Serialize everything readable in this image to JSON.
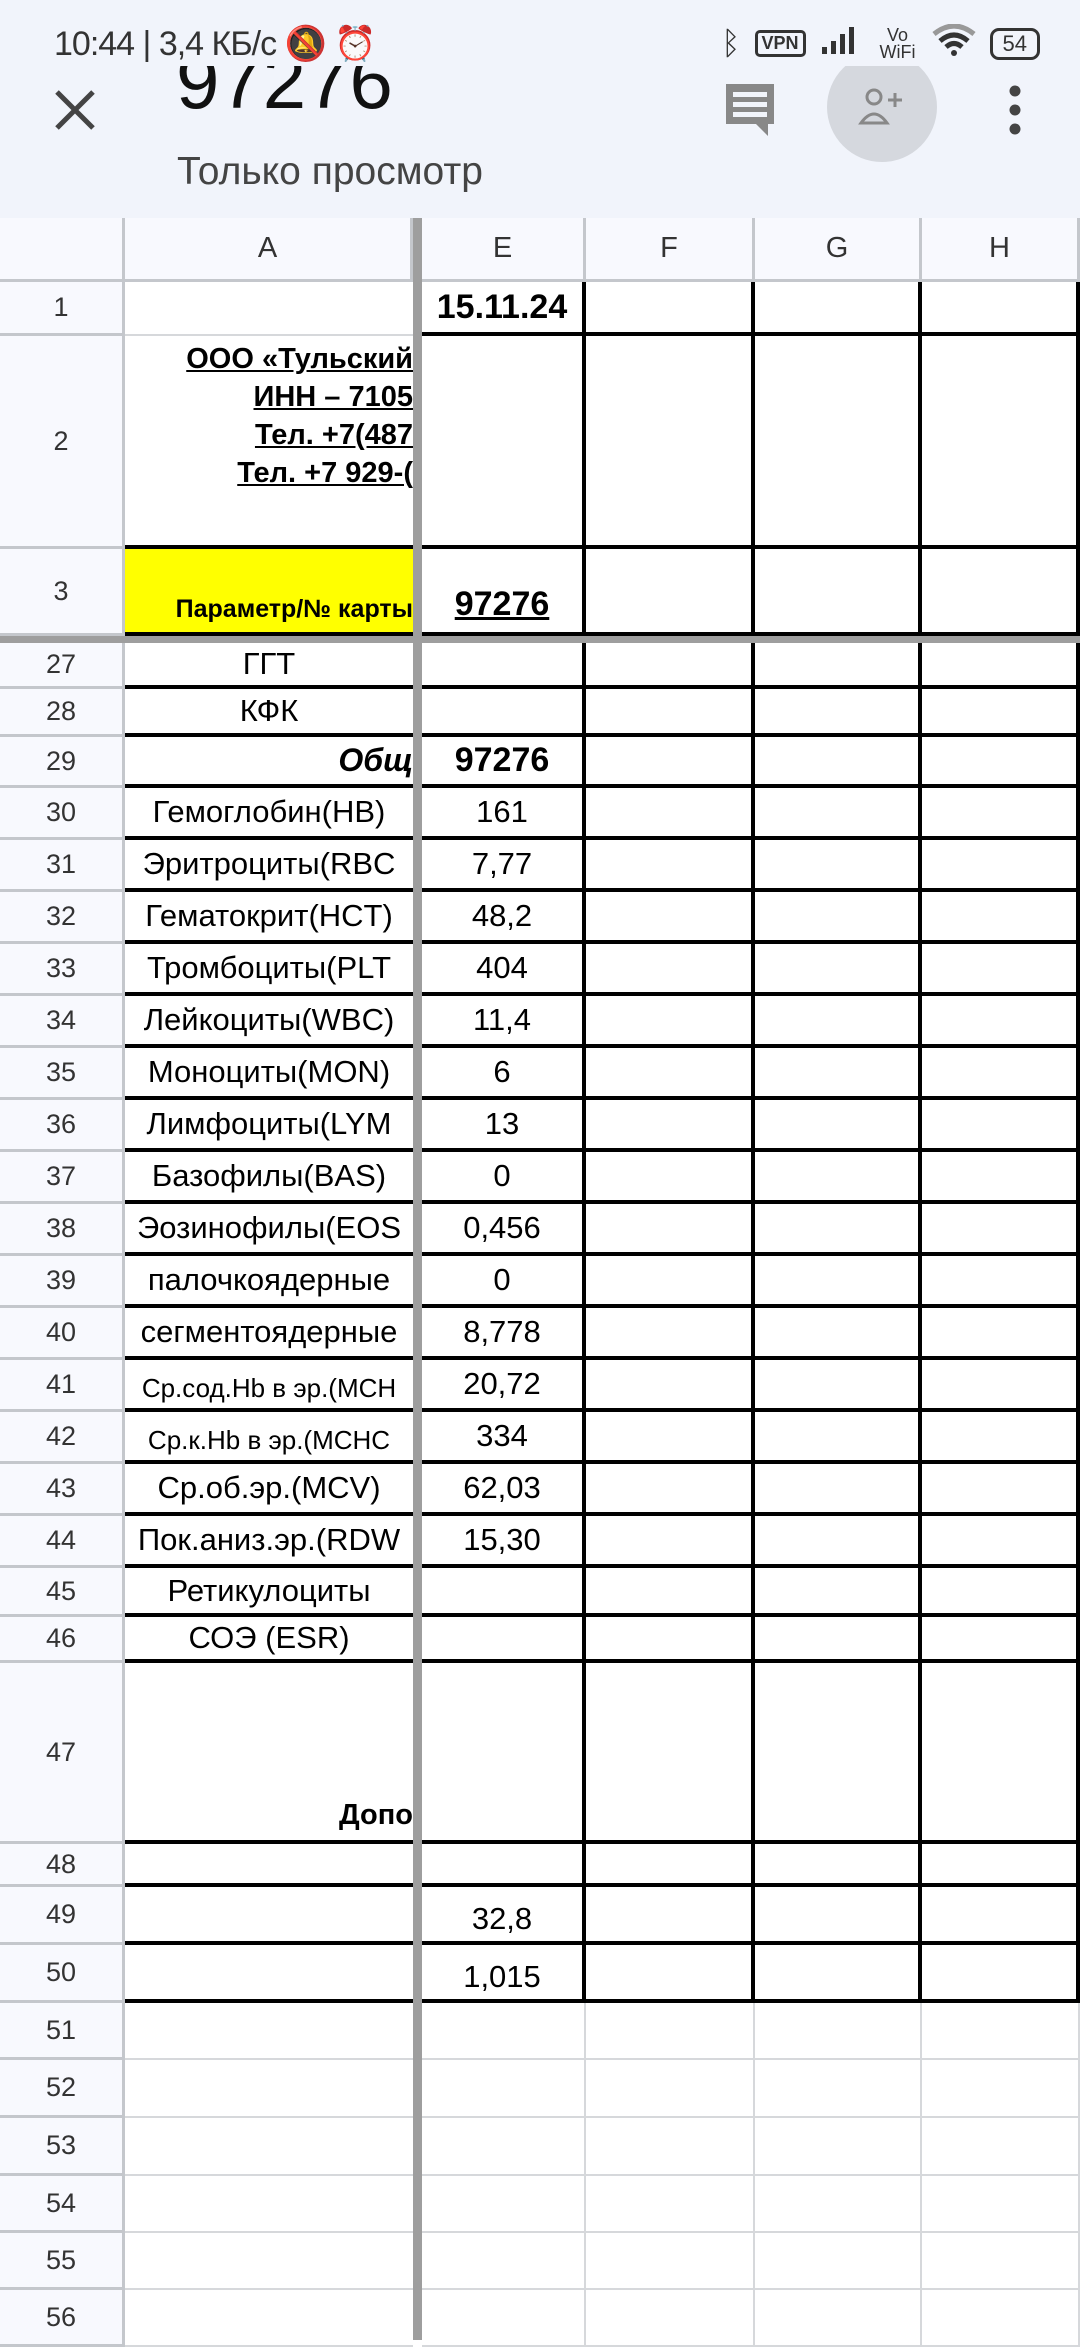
{
  "status_bar": {
    "time": "10:44",
    "speed": "3,4 КБ/с",
    "icons": [
      "mute-vibrate-icon",
      "alarm-icon",
      "bluetooth-icon",
      "vpn-icon",
      "signal-icon",
      "vowifi-icon",
      "wifi-icon",
      "battery-icon"
    ],
    "vpn": "VPN",
    "vowifi": "Vo WiFi",
    "battery": "54"
  },
  "header": {
    "title": "97276",
    "subtitle": "Только просмотр",
    "icons": [
      "close-icon",
      "comment-icon",
      "add-person-icon",
      "more-vert-icon"
    ]
  },
  "columns": [
    "A",
    "E",
    "F",
    "G",
    "H"
  ],
  "rows": [
    {
      "num": "1",
      "a": "",
      "e": "15.11.24"
    },
    {
      "num": "2",
      "a": [
        "ООО «Тульский",
        "ИНН – 7105",
        "Тел. +7(487",
        "Тел. +7 929-("
      ],
      "e": ""
    },
    {
      "num": "3",
      "a": "Параметр/№ карты",
      "e": "97276"
    },
    {
      "num": "27",
      "a": "ГГТ",
      "e": ""
    },
    {
      "num": "28",
      "a": "КФК",
      "e": ""
    },
    {
      "num": "29",
      "a": "Общ",
      "e": "97276"
    },
    {
      "num": "30",
      "a": "Гемоглобин(HB)",
      "e": "161"
    },
    {
      "num": "31",
      "a": "Эритроциты(RBC",
      "e": "7,77"
    },
    {
      "num": "32",
      "a": "Гематокрит(HCT)",
      "e": "48,2"
    },
    {
      "num": "33",
      "a": "Тромбоциты(PLT",
      "e": "404"
    },
    {
      "num": "34",
      "a": "Лейкоциты(WBC)",
      "e": "11,4"
    },
    {
      "num": "35",
      "a": "Моноциты(MON)",
      "e": "6"
    },
    {
      "num": "36",
      "a": "Лимфоциты(LYM",
      "e": "13"
    },
    {
      "num": "37",
      "a": "Базофилы(BAS)",
      "e": "0"
    },
    {
      "num": "38",
      "a": "Эозинофилы(EOS",
      "e": "0,456"
    },
    {
      "num": "39",
      "a": "палочкоядерные",
      "e": "0"
    },
    {
      "num": "40",
      "a": "сегментоядерные",
      "e": "8,778"
    },
    {
      "num": "41",
      "a": "Ср.сод.Hb в эр.(MCH",
      "e": "20,72"
    },
    {
      "num": "42",
      "a": "Ср.к.Hb в эр.(MCHC",
      "e": "334"
    },
    {
      "num": "43",
      "a": "Ср.об.эр.(MCV)",
      "e": "62,03"
    },
    {
      "num": "44",
      "a": "Пок.аниз.эр.(RDW",
      "e": "15,30"
    },
    {
      "num": "45",
      "a": "Ретикулоциты",
      "e": ""
    },
    {
      "num": "46",
      "a": "СОЭ (ESR)",
      "e": ""
    },
    {
      "num": "47",
      "a": "Допо",
      "e": ""
    },
    {
      "num": "48",
      "a": "",
      "e": ""
    },
    {
      "num": "49",
      "a": "",
      "e": "32,8"
    },
    {
      "num": "50",
      "a": "",
      "e": "1,015"
    },
    {
      "num": "51",
      "a": "",
      "e": ""
    },
    {
      "num": "52",
      "a": "",
      "e": ""
    },
    {
      "num": "53",
      "a": "",
      "e": ""
    },
    {
      "num": "54",
      "a": "",
      "e": ""
    },
    {
      "num": "55",
      "a": "",
      "e": ""
    },
    {
      "num": "56",
      "a": "",
      "e": ""
    }
  ],
  "colors": {
    "header_bg": "#f1f4fb",
    "highlight": "#ffff00",
    "freeze_line": "#9e9e9e"
  }
}
